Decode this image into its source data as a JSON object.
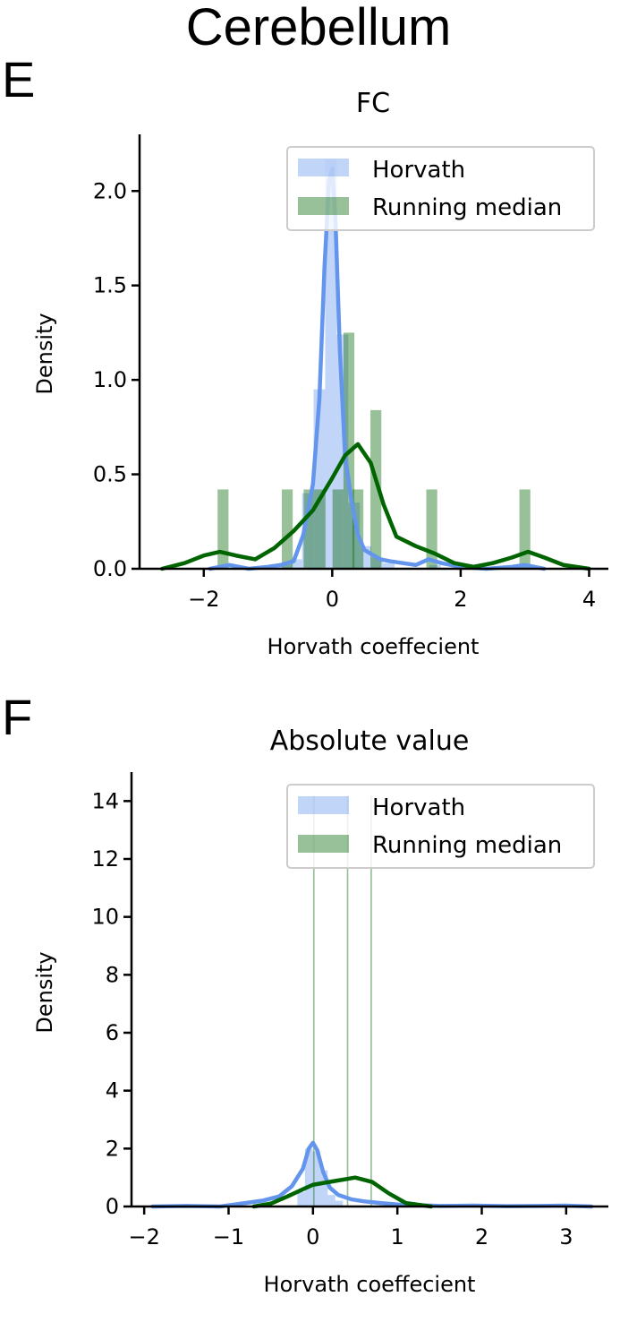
{
  "figure": {
    "suptitle": "Cerebellum",
    "colors": {
      "horvath": "#6495ED",
      "running_median": "#006400"
    }
  },
  "chart_data": [
    {
      "panel": "E",
      "type": "bar",
      "title": "FC",
      "xlabel": "Horvath coeffecient",
      "ylabel": "Density",
      "xlim": [
        -3,
        4.3
      ],
      "ylim": [
        0,
        2.3
      ],
      "xticks": [
        -2,
        0,
        2,
        4
      ],
      "yticks": [
        0.0,
        0.5,
        1.0,
        1.5,
        2.0
      ],
      "xtick_labels": [
        "−2",
        "0",
        "2",
        "4"
      ],
      "ytick_labels": [
        "0.0",
        "0.5",
        "1.0",
        "1.5",
        "2.0"
      ],
      "legend": {
        "placement": "top-right",
        "entries": [
          "Horvath",
          "Running median"
        ]
      },
      "series": [
        {
          "name": "Horvath",
          "kind": "histogram",
          "bin_width": 0.18,
          "bins": [
            {
              "x": -1.85,
              "y": 0.01
            },
            {
              "x": -0.74,
              "y": 0.02
            },
            {
              "x": -0.56,
              "y": 0.05
            },
            {
              "x": -0.38,
              "y": 0.4
            },
            {
              "x": -0.2,
              "y": 0.95
            },
            {
              "x": -0.02,
              "y": 2.17
            },
            {
              "x": 0.16,
              "y": 1.24
            },
            {
              "x": 0.34,
              "y": 0.35
            },
            {
              "x": 0.52,
              "y": 0.12
            },
            {
              "x": 0.7,
              "y": 0.06
            },
            {
              "x": 0.88,
              "y": 0.03
            },
            {
              "x": 1.6,
              "y": 0.02
            },
            {
              "x": 3.0,
              "y": 0.01
            }
          ],
          "kde": {
            "x": [
              -1.9,
              -1.6,
              -1.3,
              -1.0,
              -0.8,
              -0.6,
              -0.45,
              -0.3,
              -0.2,
              -0.12,
              -0.05,
              0.0,
              0.05,
              0.12,
              0.2,
              0.3,
              0.4,
              0.5,
              0.6,
              0.75,
              0.9,
              1.1,
              1.3,
              1.5,
              1.7,
              2.0,
              2.4,
              2.8,
              3.0,
              3.3
            ],
            "y": [
              0.0,
              0.02,
              0.0,
              0.01,
              0.02,
              0.04,
              0.18,
              0.45,
              0.9,
              1.6,
              2.05,
              2.12,
              1.85,
              1.15,
              0.6,
              0.36,
              0.18,
              0.1,
              0.08,
              0.05,
              0.04,
              0.03,
              0.02,
              0.05,
              0.03,
              0.01,
              0.0,
              0.01,
              0.02,
              0.0
            ]
          }
        },
        {
          "name": "Running median",
          "kind": "histogram",
          "bin_width": 0.17,
          "bins": [
            {
              "x": -1.7,
              "y": 0.42
            },
            {
              "x": -0.7,
              "y": 0.42
            },
            {
              "x": -0.36,
              "y": 0.42
            },
            {
              "x": -0.19,
              "y": 0.42
            },
            {
              "x": 0.09,
              "y": 0.42
            },
            {
              "x": 0.26,
              "y": 1.25
            },
            {
              "x": 0.4,
              "y": 0.42
            },
            {
              "x": 0.68,
              "y": 0.84
            },
            {
              "x": 1.55,
              "y": 0.42
            },
            {
              "x": 3.0,
              "y": 0.42
            }
          ],
          "kde": {
            "x": [
              -2.65,
              -2.3,
              -2.0,
              -1.75,
              -1.5,
              -1.2,
              -0.9,
              -0.6,
              -0.3,
              0.0,
              0.2,
              0.4,
              0.6,
              0.8,
              1.0,
              1.3,
              1.6,
              1.9,
              2.2,
              2.5,
              2.8,
              3.05,
              3.3,
              3.6,
              4.0
            ],
            "y": [
              0.0,
              0.03,
              0.07,
              0.09,
              0.07,
              0.05,
              0.11,
              0.2,
              0.31,
              0.48,
              0.6,
              0.66,
              0.56,
              0.34,
              0.17,
              0.12,
              0.08,
              0.03,
              0.01,
              0.03,
              0.06,
              0.09,
              0.06,
              0.02,
              0.0
            ]
          }
        }
      ]
    },
    {
      "panel": "F",
      "type": "bar",
      "title": "Absolute value",
      "xlabel": "Horvath coeffecient",
      "ylabel": "Density",
      "xlim": [
        -2.15,
        3.5
      ],
      "ylim": [
        0,
        15
      ],
      "xticks": [
        -2,
        -1,
        0,
        1,
        2,
        3
      ],
      "yticks": [
        0,
        2,
        4,
        6,
        8,
        10,
        12,
        14
      ],
      "xtick_labels": [
        "−2",
        "−1",
        "0",
        "1",
        "2",
        "3"
      ],
      "ytick_labels": [
        "0",
        "2",
        "4",
        "6",
        "8",
        "10",
        "12",
        "14"
      ],
      "legend": {
        "placement": "top-right",
        "entries": [
          "Horvath",
          "Running median"
        ]
      },
      "series": [
        {
          "name": "Horvath",
          "kind": "histogram",
          "bin_width": 0.09,
          "bins": [
            {
              "x": -0.14,
              "y": 0.5
            },
            {
              "x": -0.05,
              "y": 2.0
            },
            {
              "x": 0.04,
              "y": 1.9
            },
            {
              "x": 0.13,
              "y": 1.25
            },
            {
              "x": 0.22,
              "y": 0.4
            },
            {
              "x": 0.31,
              "y": 0.2
            }
          ],
          "kde": {
            "x": [
              -1.9,
              -1.5,
              -1.1,
              -0.8,
              -0.6,
              -0.4,
              -0.25,
              -0.12,
              -0.05,
              0.0,
              0.05,
              0.12,
              0.2,
              0.3,
              0.45,
              0.6,
              0.8,
              1.0,
              1.2,
              1.5,
              1.9,
              2.3,
              2.7,
              3.0,
              3.3
            ],
            "y": [
              0.0,
              0.02,
              0.0,
              0.12,
              0.2,
              0.35,
              0.7,
              1.3,
              2.0,
              2.2,
              1.95,
              1.2,
              0.65,
              0.4,
              0.25,
              0.18,
              0.12,
              0.07,
              0.05,
              0.02,
              0.03,
              0.01,
              0.02,
              0.03,
              0.0
            ]
          }
        },
        {
          "name": "Running median",
          "kind": "histogram",
          "bin_width": 0.018,
          "bins": [
            {
              "x": 0.01,
              "y": 14.2
            },
            {
              "x": 0.41,
              "y": 14.2
            },
            {
              "x": 0.69,
              "y": 14.2
            }
          ],
          "kde": {
            "x": [
              -0.7,
              -0.5,
              -0.3,
              -0.1,
              0.0,
              0.1,
              0.3,
              0.5,
              0.7,
              0.9,
              1.1,
              1.4
            ],
            "y": [
              0.0,
              0.1,
              0.35,
              0.62,
              0.75,
              0.8,
              0.9,
              1.0,
              0.85,
              0.45,
              0.12,
              0.0
            ]
          }
        }
      ]
    }
  ]
}
